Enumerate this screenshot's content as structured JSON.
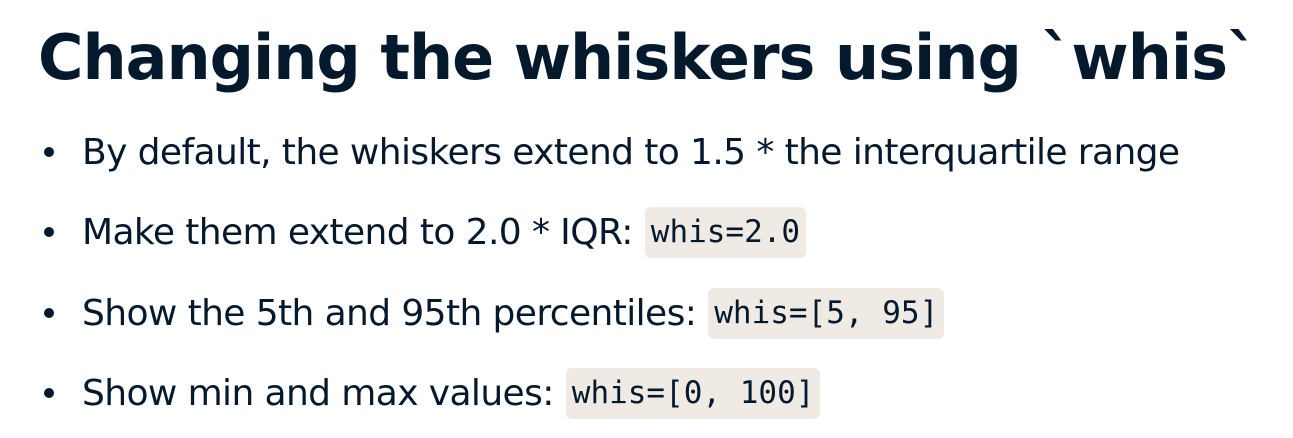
{
  "slide": {
    "title": "Changing the whiskers using `whis`",
    "bullets": [
      {
        "text": "By default, the whiskers extend to 1.5 * the interquartile range",
        "code": ""
      },
      {
        "text": "Make them extend to 2.0 * IQR:",
        "code": "whis=2.0"
      },
      {
        "text": "Show the 5th and 95th percentiles:",
        "code": "whis=[5, 95]"
      },
      {
        "text": "Show min and max values:",
        "code": "whis=[0, 100]"
      }
    ]
  },
  "colors": {
    "text": "#05192d",
    "code_background": "#efebe4",
    "background": "#ffffff"
  }
}
